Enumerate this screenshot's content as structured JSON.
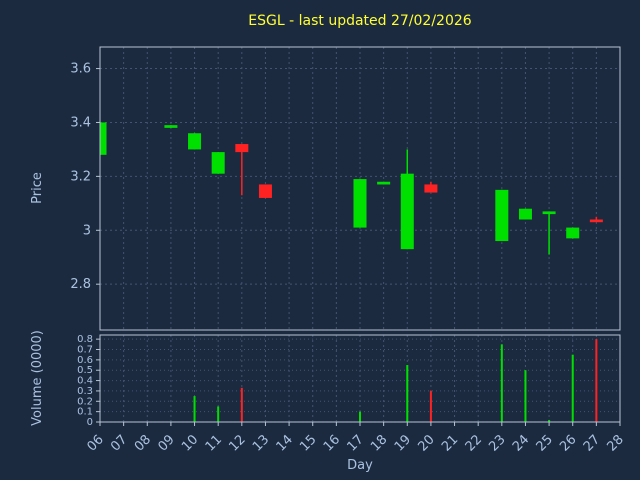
{
  "chart_data": {
    "type": "candlestick",
    "title": "ESGL - last updated 27/02/2026",
    "xlabel": "Day",
    "legend": "none",
    "grid": "dashed",
    "price_axis": {
      "label": "Price",
      "ticks": [
        2.8,
        3.0,
        3.2,
        3.4,
        3.6
      ],
      "tick_labels": [
        "2.8",
        "3",
        "3.2",
        "3.4",
        "3.6"
      ],
      "ylim": [
        2.63,
        3.68
      ]
    },
    "volume_axis": {
      "label": "Volume (0000)",
      "ticks": [
        0,
        0.1,
        0.2,
        0.3,
        0.4,
        0.5,
        0.6,
        0.7,
        0.8
      ],
      "tick_labels": [
        "0",
        "0.1",
        "0.2",
        "0.3",
        "0.4",
        "0.5",
        "0.6",
        "0.7",
        "0.8"
      ],
      "ylim": [
        0,
        0.84
      ]
    },
    "x_axis": {
      "label": "Day",
      "xlim": [
        6,
        28
      ],
      "days": [
        6,
        7,
        8,
        9,
        10,
        11,
        12,
        13,
        14,
        15,
        16,
        17,
        18,
        19,
        20,
        21,
        22,
        23,
        24,
        25,
        26,
        27,
        28
      ],
      "tick_labels": [
        "06",
        "07",
        "08",
        "09",
        "10",
        "11",
        "12",
        "13",
        "14",
        "15",
        "16",
        "17",
        "18",
        "19",
        "20",
        "21",
        "22",
        "23",
        "24",
        "25",
        "26",
        "27",
        "28"
      ]
    },
    "candles": [
      {
        "day": 6,
        "open": 3.28,
        "high": 3.4,
        "low": 3.28,
        "close": 3.4,
        "volume": 0
      },
      {
        "day": 9,
        "open": 3.38,
        "high": 3.39,
        "low": 3.38,
        "close": 3.39,
        "volume": 0
      },
      {
        "day": 10,
        "open": 3.3,
        "high": 3.36,
        "low": 3.3,
        "close": 3.36,
        "volume": 0.25
      },
      {
        "day": 11,
        "open": 3.21,
        "high": 3.29,
        "low": 3.21,
        "close": 3.29,
        "volume": 0.15
      },
      {
        "day": 12,
        "open": 3.32,
        "high": 3.32,
        "low": 3.13,
        "close": 3.29,
        "volume": 0.33
      },
      {
        "day": 13,
        "open": 3.17,
        "high": 3.17,
        "low": 3.12,
        "close": 3.12,
        "volume": 0
      },
      {
        "day": 17,
        "open": 3.01,
        "high": 3.19,
        "low": 3.01,
        "close": 3.19,
        "volume": 0.1
      },
      {
        "day": 18,
        "open": 3.17,
        "high": 3.18,
        "low": 3.17,
        "close": 3.18,
        "volume": 0
      },
      {
        "day": 19,
        "open": 2.93,
        "high": 3.3,
        "low": 2.93,
        "close": 3.21,
        "volume": 0.55
      },
      {
        "day": 20,
        "open": 3.17,
        "high": 3.18,
        "low": 3.14,
        "close": 3.14,
        "volume": 0.3
      },
      {
        "day": 23,
        "open": 2.96,
        "high": 3.15,
        "low": 2.96,
        "close": 3.15,
        "volume": 0.75
      },
      {
        "day": 24,
        "open": 3.04,
        "high": 3.08,
        "low": 3.04,
        "close": 3.08,
        "volume": 0.5
      },
      {
        "day": 25,
        "open": 3.06,
        "high": 3.07,
        "low": 2.91,
        "close": 3.07,
        "volume": 0.02
      },
      {
        "day": 26,
        "open": 2.97,
        "high": 3.01,
        "low": 2.97,
        "close": 3.01,
        "volume": 0.65
      },
      {
        "day": 27,
        "open": 3.04,
        "high": 3.05,
        "low": 3.03,
        "close": 3.03,
        "volume": 0.8
      }
    ],
    "colors": {
      "background": "#1c2a40",
      "up": "#00e000",
      "down": "#ff2222",
      "grid": "#44546e",
      "frame": "#b8c4d4",
      "tick_text": "#a9c2e0",
      "title": "#ffff33"
    }
  }
}
